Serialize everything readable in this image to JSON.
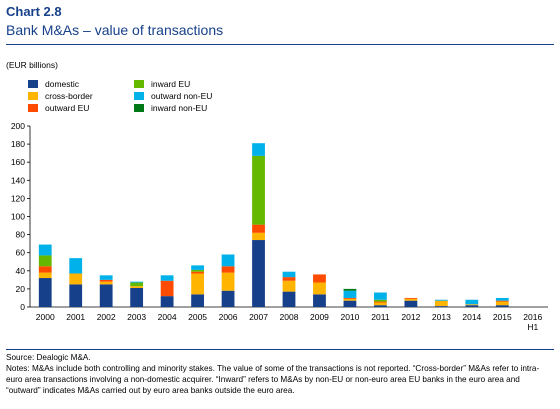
{
  "header": {
    "chart_number": "Chart 2.8",
    "title": "Bank M&As – value of transactions",
    "unit": "(EUR billions)"
  },
  "notes": {
    "source": "Source: Dealogic M&A.",
    "text": "Notes: M&As include both controlling and minority stakes. The value of some of the transactions is not reported. “Cross-border” M&As refer to intra-euro area transactions involving a non-domestic acquirer. “Inward” refers to M&As by non-EU or non-euro area EU banks in the euro area and “outward” indicates M&As carried out by euro area banks outside the euro area."
  },
  "chart_data": {
    "type": "bar",
    "stacked": true,
    "categories": [
      "2000",
      "2001",
      "2002",
      "2003",
      "2004",
      "2005",
      "2006",
      "2007",
      "2008",
      "2009",
      "2010",
      "2011",
      "2012",
      "2013",
      "2014",
      "2015",
      "2016 H1"
    ],
    "ylim": [
      0,
      200
    ],
    "yticks": [
      0,
      20,
      40,
      60,
      80,
      100,
      120,
      140,
      160,
      180,
      200
    ],
    "grid": false,
    "legend_position": "top-left",
    "series": [
      {
        "name": "domestic",
        "color": "#17408B",
        "values": [
          32,
          25,
          25,
          21,
          12,
          14,
          18,
          74,
          17,
          14,
          7,
          2,
          7,
          1,
          2,
          2,
          0
        ]
      },
      {
        "name": "cross-border",
        "color": "#FFB400",
        "values": [
          6,
          12,
          3,
          2,
          0,
          23,
          20,
          8,
          12,
          13,
          2,
          3,
          2,
          6,
          1,
          4,
          0
        ]
      },
      {
        "name": "outward EU",
        "color": "#FF4B00",
        "values": [
          7,
          0,
          2,
          0,
          17,
          2,
          7,
          9,
          4,
          9,
          1,
          1,
          1,
          0,
          0,
          1,
          0
        ]
      },
      {
        "name": "inward EU",
        "color": "#65B800",
        "values": [
          12,
          0,
          0,
          4,
          0,
          2,
          0,
          76,
          0,
          0,
          0,
          2,
          0,
          0,
          0,
          0,
          0
        ]
      },
      {
        "name": "outward non-EU",
        "color": "#00B1EA",
        "values": [
          12,
          17,
          5,
          1,
          6,
          5,
          13,
          14,
          6,
          0,
          8,
          8,
          0,
          1,
          5,
          3,
          0
        ]
      },
      {
        "name": "inward non-EU",
        "color": "#007816",
        "values": [
          0,
          0,
          0,
          0,
          0,
          0,
          0,
          0,
          0,
          0,
          2,
          0,
          0,
          0,
          0,
          0,
          0
        ]
      }
    ]
  }
}
